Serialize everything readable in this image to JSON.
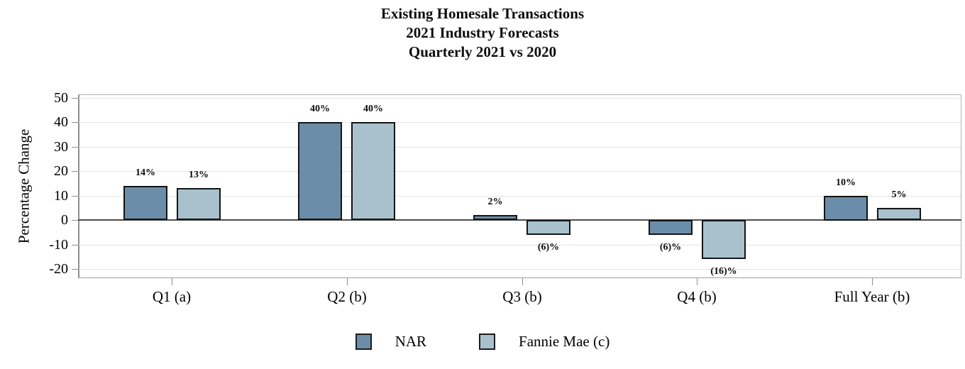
{
  "chart_data": {
    "type": "bar",
    "title_lines": [
      "Existing Homesale Transactions",
      "2021 Industry Forecasts",
      "Quarterly 2021 vs 2020"
    ],
    "ylabel": "Percentage Change",
    "xlabel": "",
    "categories": [
      "Q1 (a)",
      "Q2 (b)",
      "Q3 (b)",
      "Q4 (b)",
      "Full Year (b)"
    ],
    "series": [
      {
        "name": "NAR",
        "color": "#6a8ea9",
        "values": [
          14,
          40,
          2,
          -6,
          10
        ],
        "labels": [
          "14%",
          "40%",
          "2%",
          "(6)%",
          "10%"
        ]
      },
      {
        "name": "Fannie Mae (c)",
        "color": "#a9c1cd",
        "values": [
          13,
          40,
          -6,
          -16,
          5
        ],
        "labels": [
          "13%",
          "40%",
          "(6)%",
          "(16)%",
          "5%"
        ]
      }
    ],
    "y_ticks": [
      50,
      40,
      30,
      20,
      10,
      0,
      -10,
      -20
    ],
    "ylim": [
      -24,
      51.5
    ],
    "grid": "horizontal",
    "legend_position": "bottom"
  },
  "colors": {
    "series_dark": "#6a8ea9",
    "series_light": "#a9c1cd",
    "bar_border": "#141414",
    "gridline": "#e3e3e3",
    "axis_frame": "#b3b3b3",
    "zero_line": "#4d4d4d",
    "text": "#000000",
    "background": "#ffffff"
  }
}
